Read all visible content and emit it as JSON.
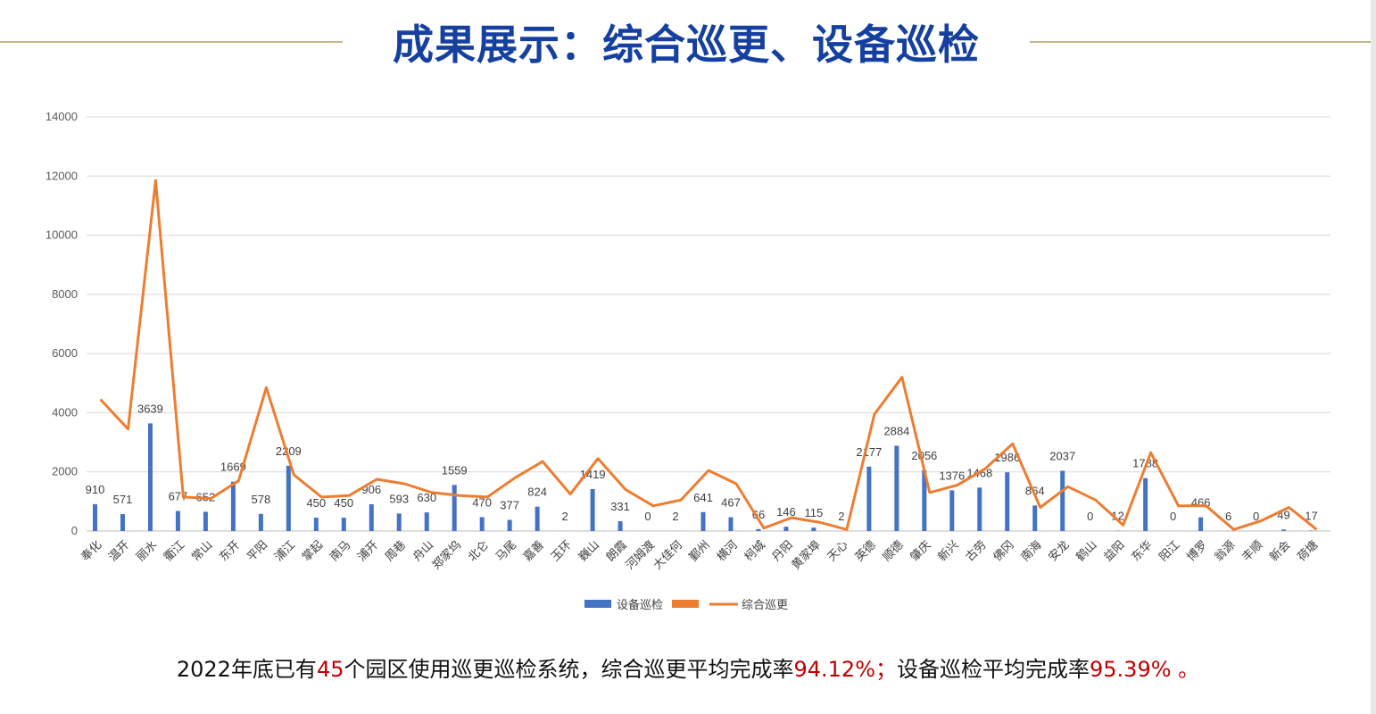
{
  "header": {
    "title": "成果展示：综合巡更、设备巡检"
  },
  "summary": {
    "prefix": "2022年底已有",
    "park_count": "45",
    "mid1": "个园区使用巡更巡检系统，综合巡更平均完成率",
    "patrol_rate": "94.12%；",
    "mid2": "设备巡检平均完成率",
    "inspect_rate": "95.39% 。"
  },
  "colors": {
    "bar": "#4472c4",
    "line": "#ed7d31",
    "grid": "#d9d9d9",
    "title": "#1540a0",
    "highlight": "#c00000"
  },
  "chart_data": {
    "type": "bar",
    "categories": [
      "奉化",
      "温开",
      "丽水",
      "衢江",
      "常山",
      "东开",
      "平阳",
      "浦江",
      "掌起",
      "南马",
      "浦开",
      "周巷",
      "舟山",
      "郑家坞",
      "北仑",
      "马尾",
      "嘉善",
      "玉环",
      "巍山",
      "朗霞",
      "河姆渡",
      "大佳何",
      "鄞州",
      "横河",
      "柯城",
      "丹阳",
      "黄家埠",
      "天心",
      "英德",
      "顺德",
      "肇庆",
      "新兴",
      "古劳",
      "佛冈",
      "南海",
      "安龙",
      "鹤山",
      "益阳",
      "东华",
      "阳江",
      "博罗",
      "翁源",
      "丰顺",
      "新会",
      "荷塘"
    ],
    "ylim": [
      0,
      14000
    ],
    "yticks": [
      0,
      2000,
      4000,
      6000,
      8000,
      10000,
      12000,
      14000
    ],
    "grid": true,
    "legend_position": "bottom",
    "series": [
      {
        "name": "设备巡检",
        "kind": "bar",
        "values": [
          910,
          571,
          3639,
          677,
          652,
          1669,
          578,
          2209,
          450,
          450,
          906,
          593,
          630,
          1559,
          470,
          377,
          824,
          2,
          1419,
          331,
          0,
          2,
          641,
          467,
          66,
          146,
          115,
          2,
          2177,
          2884,
          2056,
          1376,
          1468,
          1986,
          864,
          2037,
          0,
          12,
          1788,
          0,
          466,
          6,
          0,
          49,
          17
        ]
      },
      {
        "name": "综合巡更",
        "kind": "line",
        "values": [
          4450,
          3450,
          11850,
          1150,
          1100,
          1700,
          4850,
          1900,
          1150,
          1200,
          1750,
          1600,
          1300,
          1200,
          1150,
          1800,
          2350,
          1250,
          2450,
          1400,
          850,
          1050,
          2050,
          1600,
          100,
          450,
          300,
          50,
          3950,
          5200,
          1300,
          1550,
          2100,
          2950,
          800,
          1500,
          1050,
          200,
          2650,
          850,
          850,
          50,
          350,
          800,
          50
        ]
      }
    ],
    "legend": [
      "设备巡检",
      "",
      "综合巡更"
    ]
  }
}
